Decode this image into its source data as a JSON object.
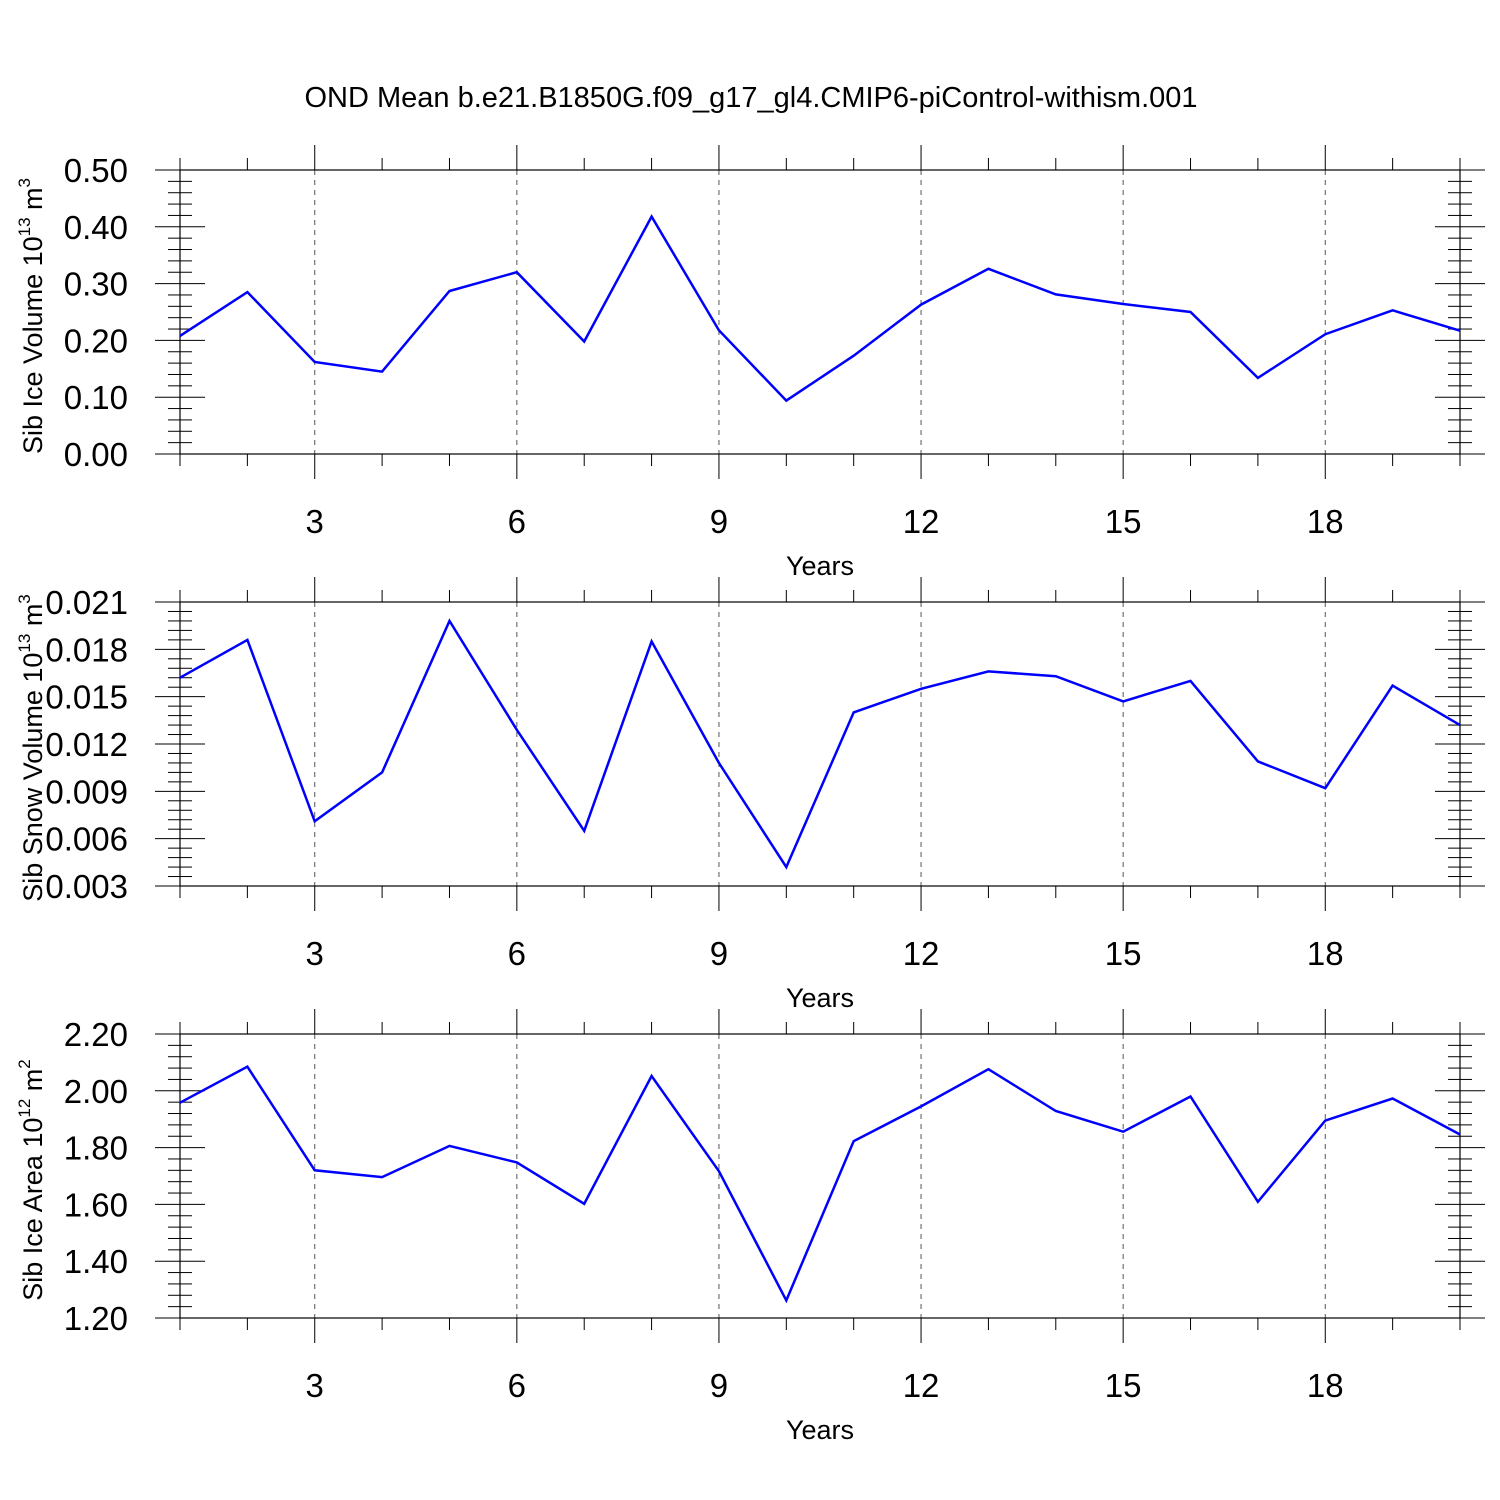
{
  "title": "OND Mean b.e21.B1850G.f09_g17_gl4.CMIP6-piControl-withism.001",
  "chart_data": [
    {
      "type": "line",
      "ylabel": "Sib Ice Volume 10",
      "ylabel_sup": "13",
      "ylabel_unit": " m",
      "ylabel_unit_sup": "3",
      "xlabel": "Years",
      "xlim": [
        1,
        20
      ],
      "ylim": [
        0,
        0.5
      ],
      "yticks": [
        0,
        0.1,
        0.2,
        0.3,
        0.4,
        0.5
      ],
      "ytick_labels": [
        "0.00",
        "0.10",
        "0.20",
        "0.30",
        "0.40",
        "0.50"
      ],
      "xticks": [
        3,
        6,
        9,
        12,
        15,
        18
      ],
      "xtick_labels": [
        "3",
        "6",
        "9",
        "12",
        "15",
        "18"
      ],
      "grid": "vertical dashed at major x ticks",
      "line_color": "#0000ff",
      "x": [
        1,
        2,
        3,
        4,
        5,
        6,
        7,
        8,
        9,
        10,
        11,
        12,
        13,
        14,
        15,
        16,
        17,
        18,
        19,
        20
      ],
      "series": [
        {
          "values": [
            0.208,
            0.285,
            0.162,
            0.145,
            0.287,
            0.32,
            0.198,
            0.418,
            0.218,
            0.094,
            0.173,
            0.263,
            0.326,
            0.281,
            0.264,
            0.25,
            0.134,
            0.211,
            0.253,
            0.217
          ]
        }
      ]
    },
    {
      "type": "line",
      "ylabel": "Sib Snow Volume 10",
      "ylabel_sup": "13",
      "ylabel_unit": " m",
      "ylabel_unit_sup": "3",
      "xlabel": "Years",
      "xlim": [
        1,
        20
      ],
      "ylim": [
        0.003,
        0.021
      ],
      "yticks": [
        0.003,
        0.006,
        0.009,
        0.012,
        0.015,
        0.018,
        0.021
      ],
      "ytick_labels": [
        "0.003",
        "0.006",
        "0.009",
        "0.012",
        "0.015",
        "0.018",
        "0.021"
      ],
      "xticks": [
        3,
        6,
        9,
        12,
        15,
        18
      ],
      "xtick_labels": [
        "3",
        "6",
        "9",
        "12",
        "15",
        "18"
      ],
      "grid": "vertical dashed at major x ticks",
      "line_color": "#0000ff",
      "x": [
        1,
        2,
        3,
        4,
        5,
        6,
        7,
        8,
        9,
        10,
        11,
        12,
        13,
        14,
        15,
        16,
        17,
        18,
        19,
        20
      ],
      "series": [
        {
          "values": [
            0.0162,
            0.0186,
            0.0071,
            0.0102,
            0.0198,
            0.0129,
            0.0065,
            0.0185,
            0.0108,
            0.0042,
            0.014,
            0.0155,
            0.0166,
            0.0163,
            0.0147,
            0.016,
            0.0109,
            0.0092,
            0.0157,
            0.0132
          ]
        }
      ]
    },
    {
      "type": "line",
      "ylabel": "Sib Ice Area 10",
      "ylabel_sup": "12",
      "ylabel_unit": " m",
      "ylabel_unit_sup": "2",
      "xlabel": "Years",
      "xlim": [
        1,
        20
      ],
      "ylim": [
        1.2,
        2.2
      ],
      "yticks": [
        1.2,
        1.4,
        1.6,
        1.8,
        2.0,
        2.2
      ],
      "ytick_labels": [
        "1.20",
        "1.40",
        "1.60",
        "1.80",
        "2.00",
        "2.20"
      ],
      "xticks": [
        3,
        6,
        9,
        12,
        15,
        18
      ],
      "xtick_labels": [
        "3",
        "6",
        "9",
        "12",
        "15",
        "18"
      ],
      "grid": "vertical dashed at major x ticks",
      "line_color": "#0000ff",
      "x": [
        1,
        2,
        3,
        4,
        5,
        6,
        7,
        8,
        9,
        10,
        11,
        12,
        13,
        14,
        15,
        16,
        17,
        18,
        19,
        20
      ],
      "series": [
        {
          "values": [
            1.958,
            2.085,
            1.72,
            1.696,
            1.806,
            1.748,
            1.602,
            2.052,
            1.717,
            1.262,
            1.823,
            1.945,
            2.076,
            1.929,
            1.856,
            1.98,
            1.609,
            1.895,
            1.973,
            1.846
          ]
        }
      ]
    }
  ]
}
